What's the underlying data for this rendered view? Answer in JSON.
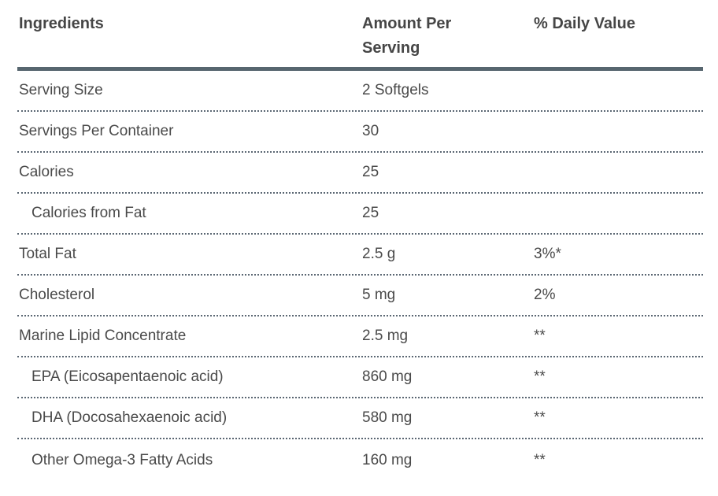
{
  "theme": {
    "text_color": "#4a4a4a",
    "heading_color": "#464646",
    "solid_rule_color": "#57666f",
    "dotted_rule_color": "#5b6773",
    "background": "#ffffff"
  },
  "table": {
    "columns": [
      "Ingredients",
      "Amount Per Serving",
      "% Daily Value"
    ],
    "rows": [
      {
        "label": "Serving Size",
        "amount": "2 Softgels",
        "daily_value": ""
      },
      {
        "label": "Servings Per Container",
        "amount": "30",
        "daily_value": ""
      },
      {
        "label": "Calories",
        "amount": "25",
        "daily_value": ""
      },
      {
        "label": "Calories from Fat",
        "amount": "25",
        "daily_value": ""
      },
      {
        "label": "Total Fat",
        "amount": "2.5 g",
        "daily_value": "3%*"
      },
      {
        "label": "Cholesterol",
        "amount": "5 mg",
        "daily_value": "2%"
      },
      {
        "label": "Marine Lipid Concentrate",
        "amount": "2.5 mg",
        "daily_value": "**"
      },
      {
        "label": "EPA (Eicosapentaenoic acid)",
        "amount": "860 mg",
        "daily_value": "**"
      },
      {
        "label": "DHA (Docosahexaenoic acid)",
        "amount": "580 mg",
        "daily_value": "**"
      },
      {
        "label": "Other Omega-3 Fatty Acids",
        "amount": "160 mg",
        "daily_value": "**"
      }
    ]
  }
}
